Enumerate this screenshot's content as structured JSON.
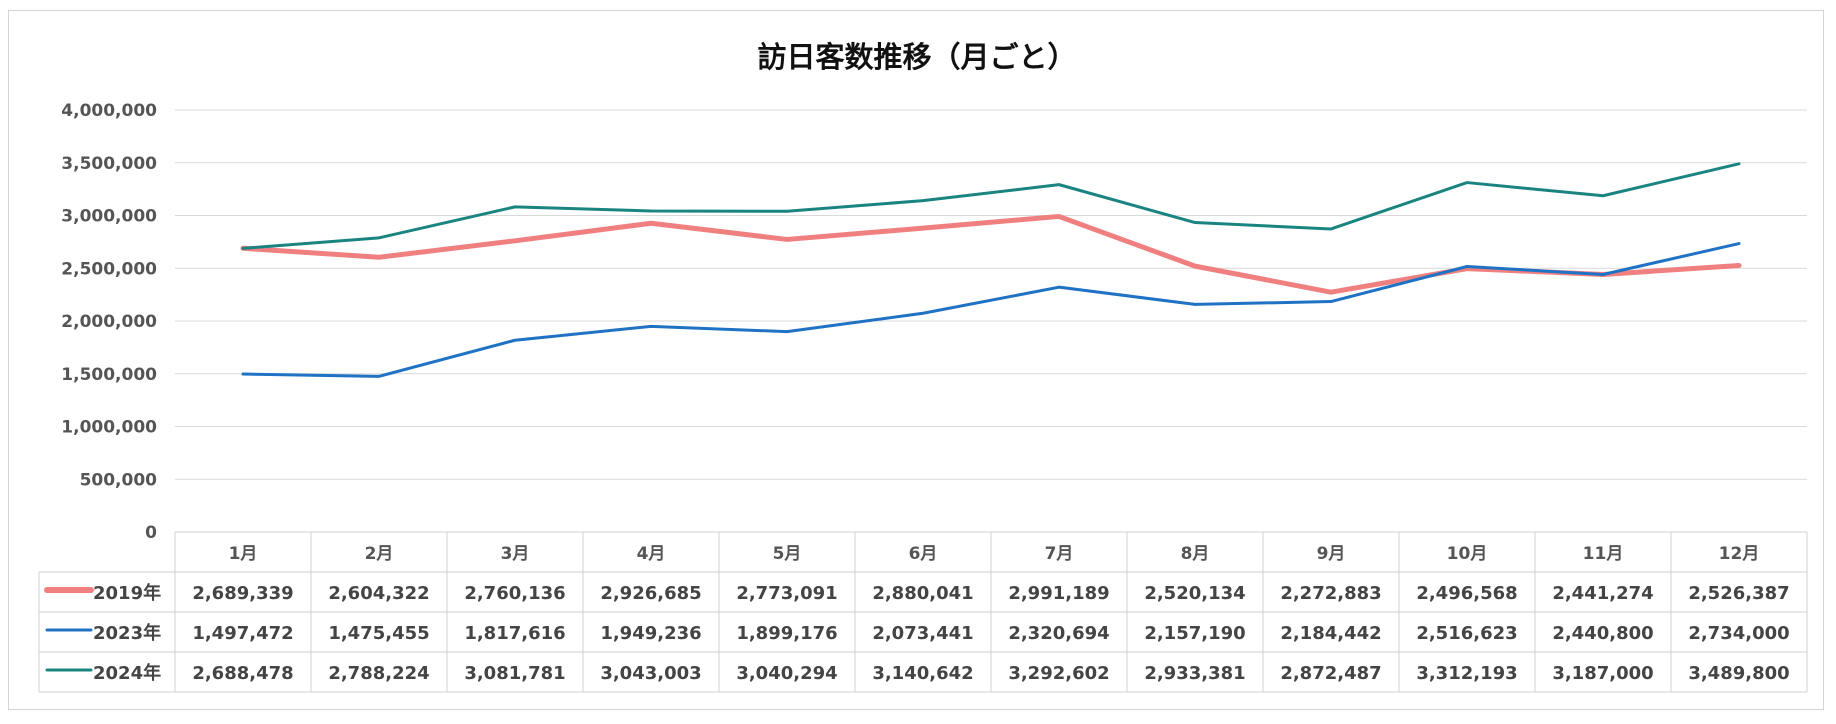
{
  "chart_data": {
    "type": "line",
    "title": "訪日客数推移（月ごと）",
    "xlabel": "",
    "ylabel": "",
    "ylim": [
      0,
      4000000
    ],
    "yticks": [
      0,
      500000,
      1000000,
      1500000,
      2000000,
      2500000,
      3000000,
      3500000,
      4000000
    ],
    "ytick_labels": [
      "0",
      "500,000",
      "1,000,000",
      "1,500,000",
      "2,000,000",
      "2,500,000",
      "3,000,000",
      "3,500,000",
      "4,000,000"
    ],
    "grid": true,
    "legend": "data-table-left",
    "categories": [
      "1月",
      "2月",
      "3月",
      "4月",
      "5月",
      "6月",
      "7月",
      "8月",
      "9月",
      "10月",
      "11月",
      "12月"
    ],
    "series": [
      {
        "name": "2019年",
        "color": "#f08080",
        "values": [
          2689339,
          2604322,
          2760136,
          2926685,
          2773091,
          2880041,
          2991189,
          2520134,
          2272883,
          2496568,
          2441274,
          2526387
        ],
        "labels": [
          "2,689,339",
          "2,604,322",
          "2,760,136",
          "2,926,685",
          "2,773,091",
          "2,880,041",
          "2,991,189",
          "2,520,134",
          "2,272,883",
          "2,496,568",
          "2,441,274",
          "2,526,387"
        ]
      },
      {
        "name": "2023年",
        "color": "#1f72c4",
        "values": [
          1497472,
          1475455,
          1817616,
          1949236,
          1899176,
          2073441,
          2320694,
          2157190,
          2184442,
          2516623,
          2440800,
          2734000
        ],
        "labels": [
          "1,497,472",
          "1,475,455",
          "1,817,616",
          "1,949,236",
          "1,899,176",
          "2,073,441",
          "2,320,694",
          "2,157,190",
          "2,184,442",
          "2,516,623",
          "2,440,800",
          "2,734,000"
        ]
      },
      {
        "name": "2024年",
        "color": "#1a8480",
        "values": [
          2688478,
          2788224,
          3081781,
          3043003,
          3040294,
          3140642,
          3292602,
          2933381,
          2872487,
          3312193,
          3187000,
          3489800
        ],
        "labels": [
          "2,688,478",
          "2,788,224",
          "3,081,781",
          "3,043,003",
          "3,040,294",
          "3,140,642",
          "3,292,602",
          "2,933,381",
          "2,872,487",
          "3,312,193",
          "3,187,000",
          "3,489,800"
        ]
      }
    ]
  }
}
